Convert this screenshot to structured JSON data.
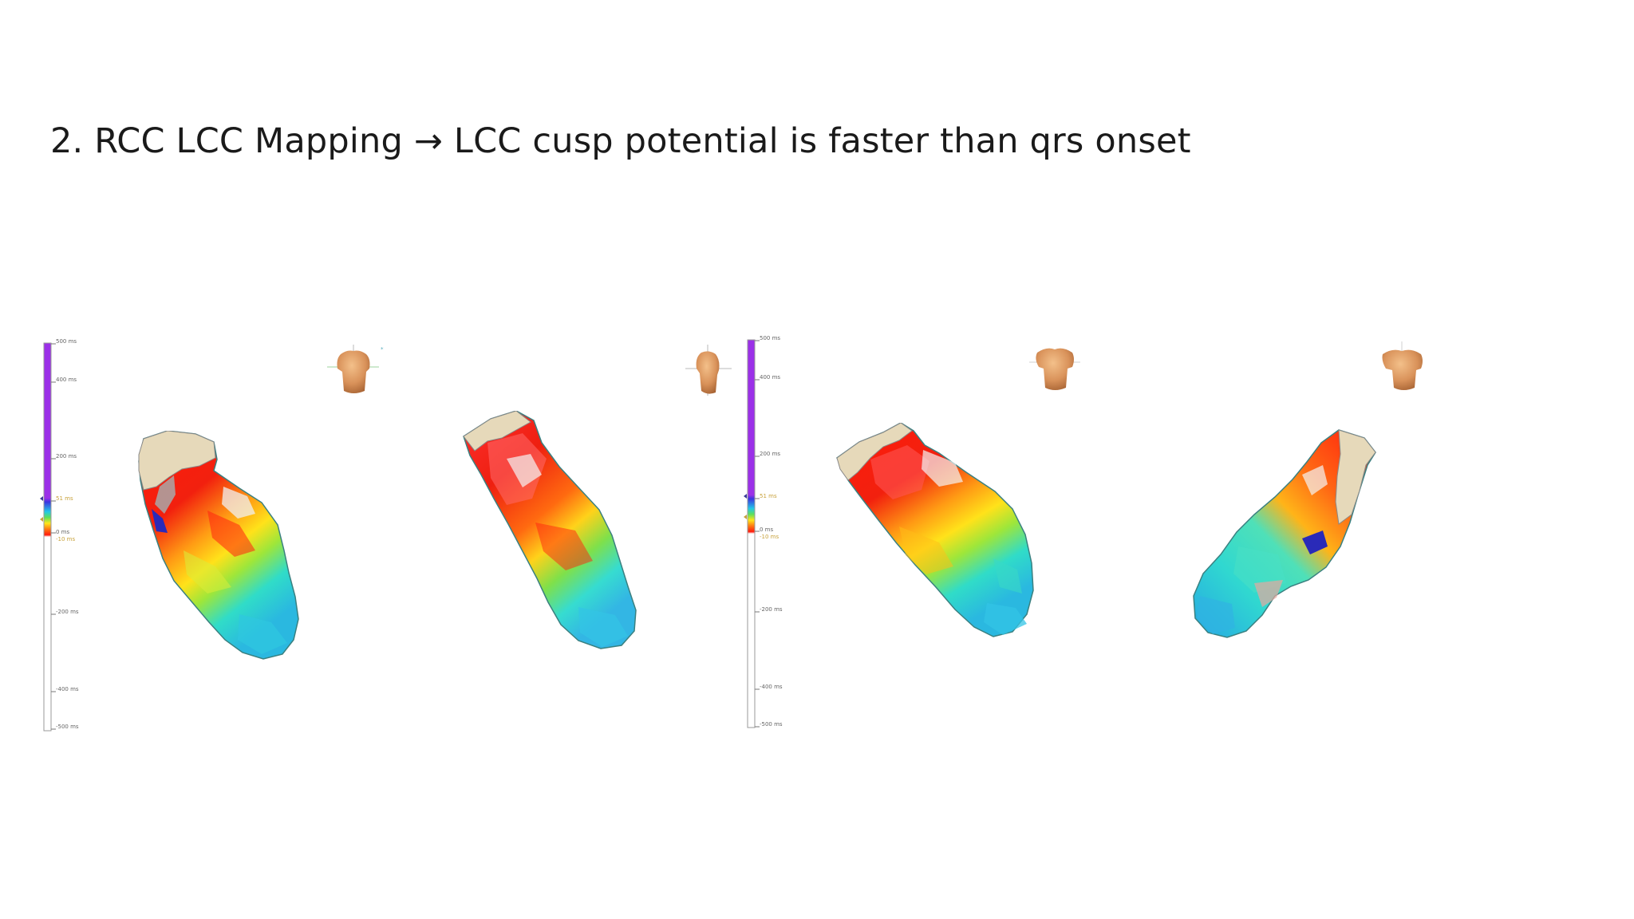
{
  "slide": {
    "title": "2. RCC LCC Mapping → LCC cusp potential is faster than qrs onset"
  },
  "colors": {
    "scale_purple": "#9b30e8",
    "late": "#ff1a0d",
    "early": "#3fd7e8",
    "unmapped": "#e8dcc0"
  },
  "panels": [
    {
      "scale_labels": [
        "500 ms",
        "400 ms",
        "200 ms",
        "51 ms",
        "0 ms",
        "-10 ms",
        "-200 ms",
        "-400 ms",
        "-500 ms"
      ]
    },
    {
      "scale_labels": [
        "500 ms",
        "400 ms",
        "200 ms",
        "51 ms",
        "0 ms",
        "-10 ms",
        "-200 ms",
        "-400 ms",
        "-500 ms"
      ]
    }
  ]
}
